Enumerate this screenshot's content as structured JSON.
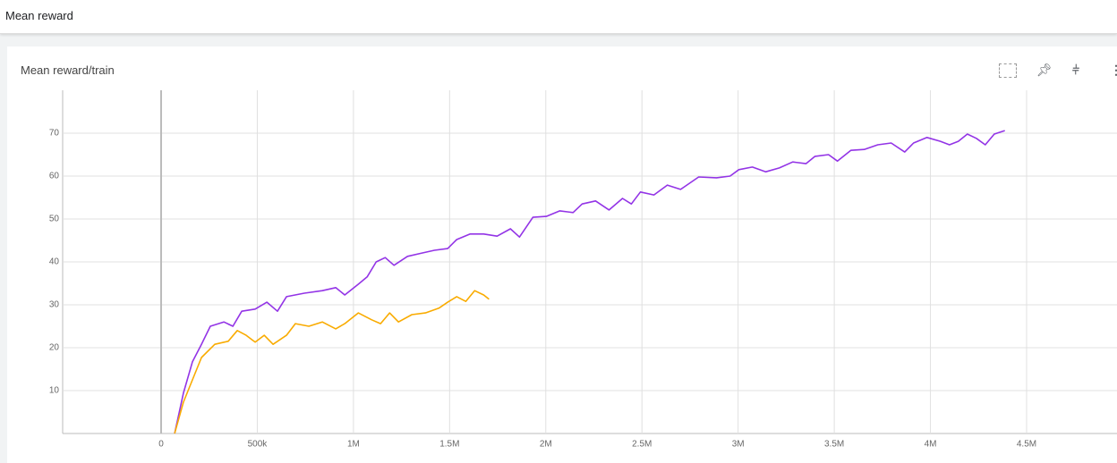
{
  "header": {
    "title": "Mean reward"
  },
  "chart_data": {
    "type": "line",
    "title": "Mean reward/train",
    "xlim": [
      -512000,
      4970000
    ],
    "xticks": [
      0,
      {
        "value": 500000,
        "label": "500k"
      },
      {
        "value": 1000000,
        "label": "1M"
      },
      {
        "value": 1500000,
        "label": "1.5M"
      },
      {
        "value": 2000000,
        "label": "2M"
      },
      {
        "value": 2500000,
        "label": "2.5M"
      },
      {
        "value": 3000000,
        "label": "3M"
      },
      {
        "value": 3500000,
        "label": "3.5M"
      },
      {
        "value": 4000000,
        "label": "4M"
      },
      {
        "value": 4500000,
        "label": "4.5M"
      }
    ],
    "ylim": [
      0,
      80
    ],
    "yticks": [
      10,
      20,
      30,
      40,
      50,
      60,
      70
    ],
    "grid": true,
    "series": [
      {
        "color": "#9334e6",
        "x": [
          70000,
          116000,
          163000,
          210000,
          256000,
          326000,
          373000,
          419000,
          489000,
          550000,
          605000,
          652000,
          745000,
          838000,
          908000,
          955000,
          1025000,
          1071000,
          1118000,
          1165000,
          1211000,
          1281000,
          1351000,
          1421000,
          1490000,
          1537000,
          1607000,
          1677000,
          1747000,
          1816000,
          1863000,
          1933000,
          2003000,
          2073000,
          2142000,
          2189000,
          2259000,
          2329000,
          2399000,
          2445000,
          2492000,
          2562000,
          2632000,
          2701000,
          2795000,
          2888000,
          2958000,
          3004000,
          3074000,
          3144000,
          3214000,
          3284000,
          3353000,
          3400000,
          3470000,
          3516000,
          3586000,
          3656000,
          3726000,
          3796000,
          3866000,
          3912000,
          3982000,
          4052000,
          4099000,
          4145000,
          4192000,
          4239000,
          4285000,
          4332000,
          4387000
        ],
        "values": [
          0,
          9.4,
          16.7,
          20.8,
          25,
          26,
          25,
          28.5,
          29,
          30.6,
          28.5,
          31.9,
          32.7,
          33.3,
          34,
          32.3,
          34.8,
          36.5,
          40,
          41,
          39.2,
          41.3,
          42,
          42.7,
          43.1,
          45.2,
          46.5,
          46.5,
          46,
          47.7,
          45.8,
          50.4,
          50.6,
          51.9,
          51.5,
          53.5,
          54.2,
          52.1,
          54.8,
          53.5,
          56.3,
          55.6,
          57.9,
          56.9,
          59.8,
          59.6,
          60,
          61.5,
          62.1,
          61,
          61.9,
          63.3,
          62.9,
          64.6,
          65,
          63.5,
          66,
          66.2,
          67.3,
          67.7,
          65.6,
          67.7,
          69,
          68.1,
          67.3,
          68.1,
          69.8,
          68.8,
          67.3,
          69.8,
          70.6
        ]
      },
      {
        "color": "#f9ab00",
        "x": [
          70000,
          116000,
          163000,
          210000,
          279000,
          349000,
          396000,
          442000,
          489000,
          536000,
          582000,
          652000,
          698000,
          768000,
          838000,
          908000,
          955000,
          1025000,
          1095000,
          1141000,
          1188000,
          1234000,
          1304000,
          1374000,
          1444000,
          1490000,
          1537000,
          1584000,
          1630000,
          1677000,
          1705000
        ],
        "values": [
          0,
          7.3,
          12.5,
          17.7,
          20.8,
          21.5,
          24,
          22.9,
          21.3,
          22.9,
          20.8,
          22.9,
          25.6,
          25,
          26,
          24.4,
          25.6,
          28.1,
          26.5,
          25.6,
          28.1,
          26,
          27.7,
          28.1,
          29.2,
          30.6,
          31.9,
          30.8,
          33.3,
          32.3,
          31.3
        ]
      }
    ]
  }
}
